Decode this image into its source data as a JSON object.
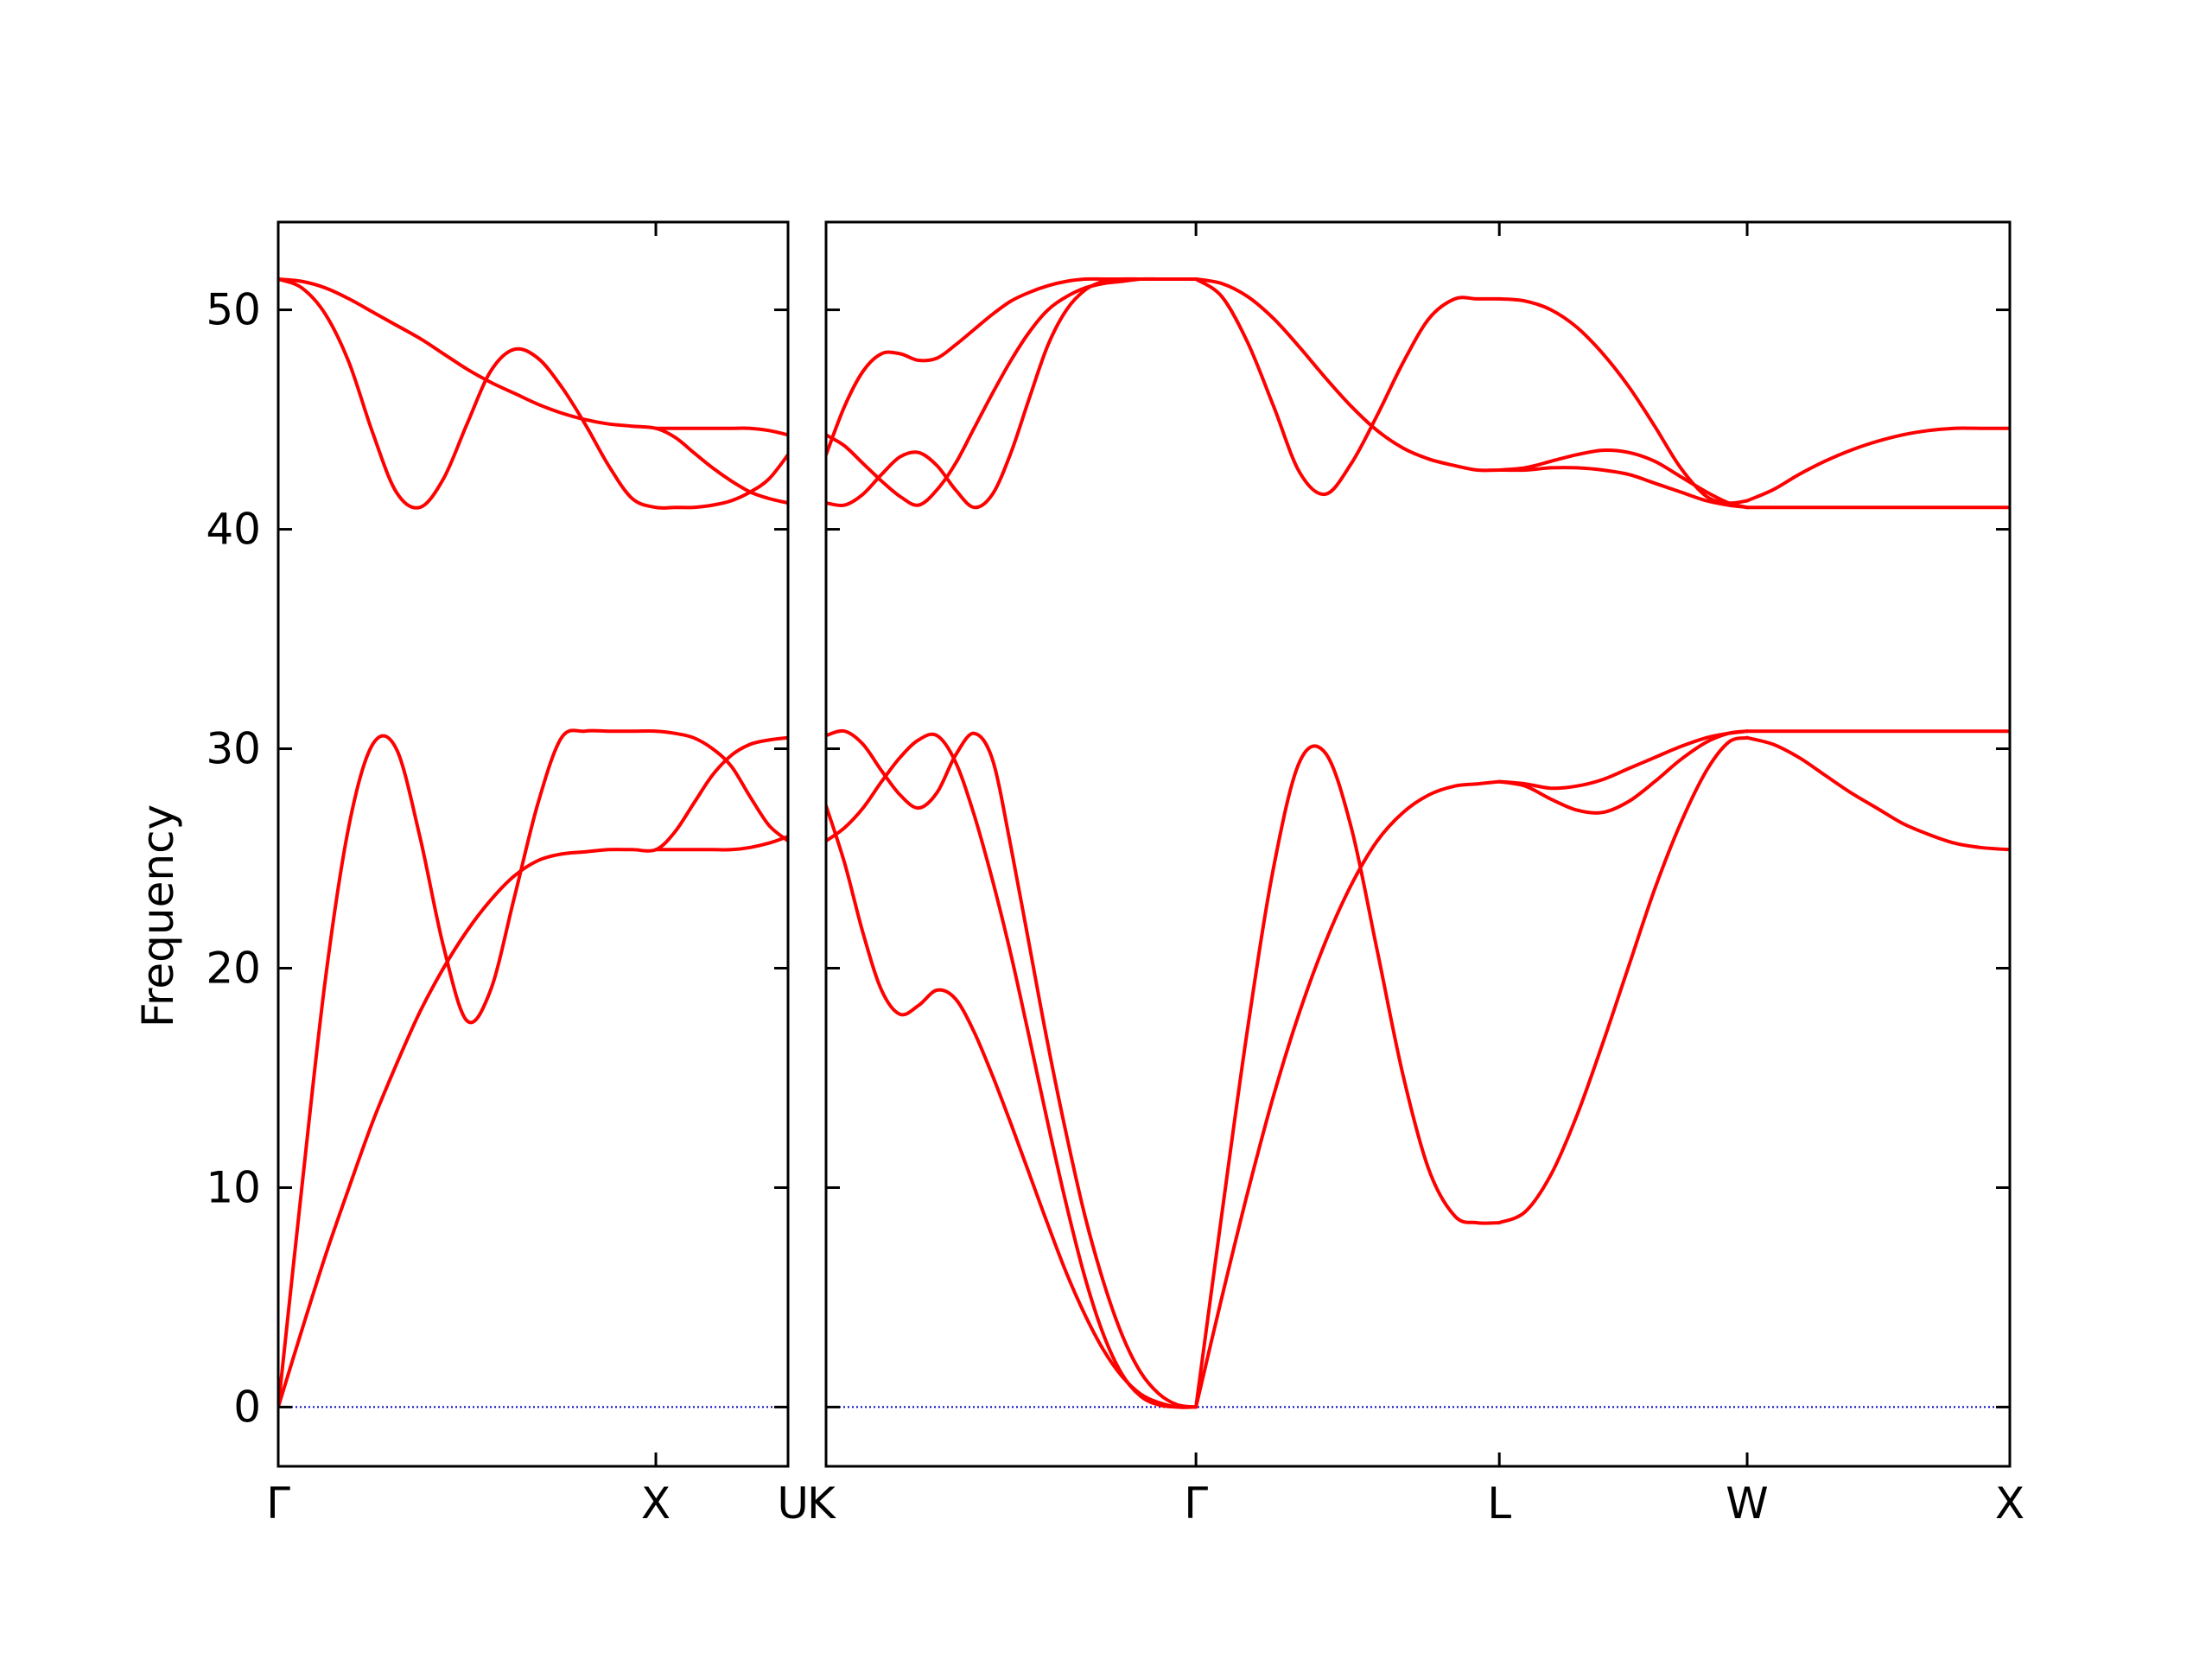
{
  "chart_data": {
    "type": "line",
    "title": "",
    "ylabel": "Frequency",
    "ylim": [
      -2.7,
      54
    ],
    "yticks": [
      0,
      10,
      20,
      30,
      40,
      50
    ],
    "grid": false,
    "legend": "none",
    "colors": {
      "band": "#ff0000",
      "zero_line": "#0000cc",
      "frame": "#000000"
    },
    "panels": [
      {
        "name": "left",
        "xlim": [
          0,
          1.35
        ],
        "xticks": [
          {
            "x": 0,
            "label": "Γ"
          },
          {
            "x": 1.0,
            "label": "X"
          },
          {
            "x": 1.35,
            "label": "U"
          }
        ],
        "series": [
          {
            "x": [
              0,
              0.0625,
              0.125,
              0.1875,
              0.25,
              0.3125,
              0.375,
              0.4375,
              0.5,
              0.5625,
              0.625,
              0.6875,
              0.75,
              0.8125,
              0.875,
              0.9375,
              1.0,
              1.05,
              1.1,
              1.15,
              1.2,
              1.25,
              1.3,
              1.35
            ],
            "y": [
              51.4,
              51.0,
              49.8,
              47.6,
              44.4,
              41.7,
              41.0,
              42.3,
              44.8,
              47.2,
              48.2,
              47.8,
              46.5,
              44.8,
              42.9,
              41.4,
              41.0,
              41.0,
              41.0,
              41.1,
              41.3,
              41.7,
              42.3,
              43.4
            ]
          },
          {
            "x": [
              0,
              0.0625,
              0.125,
              0.1875,
              0.25,
              0.3125,
              0.375,
              0.4375,
              0.5,
              0.5625,
              0.625,
              0.6875,
              0.75,
              0.8125,
              0.875,
              0.9375,
              1.0,
              1.05,
              1.1,
              1.15,
              1.2,
              1.25,
              1.3,
              1.35
            ],
            "y": [
              51.4,
              51.3,
              51.0,
              50.5,
              49.9,
              49.3,
              48.7,
              48.0,
              47.3,
              46.7,
              46.2,
              45.7,
              45.3,
              45.0,
              44.8,
              44.7,
              44.6,
              44.2,
              43.5,
              42.8,
              42.2,
              41.7,
              41.4,
              41.2
            ]
          },
          {
            "x": [
              1.0,
              1.05,
              1.1,
              1.15,
              1.2,
              1.25,
              1.3,
              1.35
            ],
            "y": [
              44.6,
              44.6,
              44.6,
              44.6,
              44.6,
              44.6,
              44.5,
              44.3
            ]
          },
          {
            "x": [
              0,
              0.0625,
              0.125,
              0.1875,
              0.25,
              0.3125,
              0.375,
              0.4375,
              0.5,
              0.5625,
              0.625,
              0.6875,
              0.75,
              0.8125,
              0.875,
              0.9375,
              1.0,
              1.05,
              1.1,
              1.15,
              1.2,
              1.25,
              1.3,
              1.35
            ],
            "y": [
              0,
              10.0,
              19.5,
              26.5,
              30.2,
              30.0,
              26.0,
              21.0,
              17.6,
              19.0,
              23.2,
              27.5,
              30.5,
              30.8,
              30.8,
              30.8,
              30.8,
              30.7,
              30.5,
              30.0,
              29.2,
              27.8,
              26.5,
              25.8
            ]
          },
          {
            "x": [
              0,
              0.0625,
              0.125,
              0.1875,
              0.25,
              0.3125,
              0.375,
              0.4375,
              0.5,
              0.5625,
              0.625,
              0.6875,
              0.75,
              0.8125,
              0.875,
              0.9375,
              1.0,
              1.05,
              1.1,
              1.15,
              1.2,
              1.25,
              1.3,
              1.35
            ],
            "y": [
              0,
              3.5,
              6.9,
              10.0,
              13.0,
              15.6,
              18.0,
              20.0,
              21.7,
              23.1,
              24.2,
              24.9,
              25.2,
              25.3,
              25.4,
              25.4,
              25.4,
              26.2,
              27.5,
              28.8,
              29.7,
              30.2,
              30.4,
              30.5
            ]
          },
          {
            "x": [
              1.0,
              1.05,
              1.1,
              1.15,
              1.2,
              1.25,
              1.3,
              1.35
            ],
            "y": [
              25.4,
              25.4,
              25.4,
              25.4,
              25.4,
              25.5,
              25.7,
              26.0
            ]
          }
        ]
      },
      {
        "name": "right",
        "xlim": [
          0,
          3.2
        ],
        "xticks": [
          {
            "x": 0,
            "label": "K"
          },
          {
            "x": 1.0,
            "label": "Γ"
          },
          {
            "x": 1.82,
            "label": "L"
          },
          {
            "x": 2.49,
            "label": "W"
          },
          {
            "x": 3.2,
            "label": "X"
          }
        ],
        "series": [
          {
            "x": [
              0,
              0.05,
              0.1,
              0.15,
              0.2,
              0.25,
              0.3,
              0.35,
              0.4,
              0.45,
              0.5,
              0.55,
              0.6,
              0.65,
              0.7,
              0.75,
              0.8,
              0.85,
              0.9,
              0.95,
              1.0
            ],
            "y": [
              43.4,
              45.6,
              47.2,
              48.0,
              48.0,
              47.7,
              47.8,
              48.4,
              49.1,
              49.8,
              50.4,
              50.8,
              51.1,
              51.3,
              51.4,
              51.4,
              51.4,
              51.4,
              51.4,
              51.4,
              51.4
            ]
          },
          {
            "x": [
              0,
              0.05,
              0.1,
              0.15,
              0.2,
              0.25,
              0.3,
              0.35,
              0.4,
              0.45,
              0.5,
              0.55,
              0.6,
              0.65,
              0.7,
              0.75,
              0.8,
              0.85,
              0.9,
              0.95,
              1.0
            ],
            "y": [
              44.3,
              43.8,
              43.0,
              42.2,
              41.5,
              41.1,
              41.8,
              43.0,
              44.6,
              46.2,
              47.7,
              49.0,
              50.0,
              50.6,
              51.0,
              51.2,
              51.3,
              51.4,
              51.4,
              51.4,
              51.4
            ]
          },
          {
            "x": [
              0,
              0.05,
              0.1,
              0.15,
              0.2,
              0.25,
              0.3,
              0.35,
              0.4,
              0.45,
              0.5,
              0.55,
              0.6,
              0.65,
              0.7,
              0.75,
              0.8,
              0.85,
              0.9,
              0.95,
              1.0
            ],
            "y": [
              41.2,
              41.1,
              41.6,
              42.5,
              43.3,
              43.5,
              42.9,
              41.8,
              41.0,
              41.6,
              43.5,
              46.0,
              48.4,
              50.0,
              50.9,
              51.3,
              51.4,
              51.4,
              51.4,
              51.4,
              51.4
            ]
          },
          {
            "x": [
              1.0,
              1.07,
              1.14,
              1.21,
              1.28,
              1.35,
              1.42,
              1.49,
              1.56,
              1.63,
              1.7,
              1.76,
              1.82
            ],
            "y": [
              51.4,
              51.2,
              50.6,
              49.6,
              48.3,
              46.9,
              45.6,
              44.5,
              43.7,
              43.2,
              42.9,
              42.7,
              42.7
            ]
          },
          {
            "x": [
              1.0,
              1.07,
              1.14,
              1.21,
              1.28,
              1.35,
              1.42,
              1.49,
              1.56,
              1.63,
              1.7,
              1.76,
              1.82
            ],
            "y": [
              51.4,
              50.6,
              48.5,
              45.6,
              42.6,
              41.6,
              43.0,
              45.2,
              47.6,
              49.6,
              50.5,
              50.5,
              50.5
            ]
          },
          {
            "x": [
              1.82,
              1.89,
              1.96,
              2.03,
              2.1,
              2.17,
              2.24,
              2.31,
              2.38,
              2.44,
              2.49
            ],
            "y": [
              50.5,
              50.4,
              50.0,
              49.2,
              48.0,
              46.5,
              44.7,
              42.8,
              41.5,
              41.2,
              41.3
            ]
          },
          {
            "x": [
              1.82,
              1.89,
              1.96,
              2.03,
              2.1,
              2.17,
              2.24,
              2.31,
              2.38,
              2.44,
              2.49
            ],
            "y": [
              42.7,
              42.8,
              43.1,
              43.4,
              43.6,
              43.5,
              43.1,
              42.4,
              41.7,
              41.2,
              41.0
            ]
          },
          {
            "x": [
              1.82,
              1.89,
              1.96,
              2.03,
              2.1,
              2.17,
              2.24,
              2.31,
              2.38,
              2.44,
              2.49
            ],
            "y": [
              42.7,
              42.7,
              42.8,
              42.8,
              42.7,
              42.5,
              42.1,
              41.7,
              41.3,
              41.1,
              41.0
            ]
          },
          {
            "x": [
              2.49,
              2.56,
              2.63,
              2.7,
              2.77,
              2.84,
              2.91,
              2.98,
              3.05,
              3.12,
              3.2
            ],
            "y": [
              41.3,
              41.8,
              42.5,
              43.1,
              43.6,
              44.0,
              44.3,
              44.5,
              44.6,
              44.6,
              44.6
            ]
          },
          {
            "x": [
              2.49,
              2.56,
              2.63,
              2.7,
              2.77,
              2.84,
              2.91,
              2.98,
              3.05,
              3.12,
              3.2
            ],
            "y": [
              41.0,
              41.0,
              41.0,
              41.0,
              41.0,
              41.0,
              41.0,
              41.0,
              41.0,
              41.0,
              41.0
            ]
          },
          {
            "x": [
              0,
              0.05,
              0.1,
              0.15,
              0.2,
              0.25,
              0.3,
              0.35,
              0.4,
              0.45,
              0.5,
              0.55,
              0.6,
              0.65,
              0.7,
              0.75,
              0.8,
              0.85,
              0.9,
              0.95,
              1.0
            ],
            "y": [
              30.6,
              30.8,
              30.2,
              29.0,
              27.9,
              27.3,
              28.0,
              29.7,
              30.7,
              29.5,
              25.5,
              21.0,
              16.5,
              12.4,
              8.7,
              5.7,
              3.3,
              1.6,
              0.6,
              0.1,
              0
            ]
          },
          {
            "x": [
              0,
              0.05,
              0.1,
              0.15,
              0.2,
              0.25,
              0.3,
              0.35,
              0.4,
              0.45,
              0.5,
              0.55,
              0.6,
              0.65,
              0.7,
              0.75,
              0.8,
              0.85,
              0.9,
              0.95,
              1.0
            ],
            "y": [
              25.8,
              26.4,
              27.3,
              28.5,
              29.6,
              30.4,
              30.6,
              29.4,
              27.0,
              24.0,
              20.6,
              16.8,
              12.9,
              9.2,
              5.9,
              3.3,
              1.5,
              0.5,
              0.1,
              0,
              0
            ]
          },
          {
            "x": [
              0,
              0.05,
              0.1,
              0.15,
              0.2,
              0.25,
              0.3,
              0.35,
              0.4,
              0.45,
              0.5,
              0.55,
              0.6,
              0.65,
              0.7,
              0.75,
              0.8,
              0.85,
              0.9,
              0.95,
              1.0
            ],
            "y": [
              27.4,
              24.8,
              21.6,
              19.0,
              17.9,
              18.3,
              19.0,
              18.6,
              17.1,
              15.1,
              12.9,
              10.6,
              8.3,
              6.1,
              4.2,
              2.6,
              1.4,
              0.6,
              0.2,
              0,
              0
            ]
          },
          {
            "x": [
              1.0,
              1.07,
              1.14,
              1.21,
              1.28,
              1.35,
              1.42,
              1.49,
              1.56,
              1.63,
              1.7,
              1.76,
              1.82
            ],
            "y": [
              0,
              8.8,
              17.3,
              24.6,
              29.4,
              29.8,
              26.4,
              20.8,
              15.1,
              10.8,
              8.7,
              8.4,
              8.4
            ]
          },
          {
            "x": [
              1.0,
              1.07,
              1.14,
              1.21,
              1.28,
              1.35,
              1.42,
              1.49,
              1.56,
              1.63,
              1.7,
              1.76,
              1.82
            ],
            "y": [
              0,
              5.0,
              9.8,
              14.2,
              18.0,
              21.2,
              23.8,
              25.8,
              27.1,
              27.9,
              28.3,
              28.4,
              28.5
            ]
          },
          {
            "x": [
              1.82,
              1.89,
              1.96,
              2.03,
              2.1,
              2.17,
              2.24,
              2.31,
              2.38,
              2.44,
              2.49
            ],
            "y": [
              8.4,
              8.9,
              10.6,
              13.3,
              16.6,
              20.1,
              23.6,
              26.6,
              29.0,
              30.3,
              30.5
            ]
          },
          {
            "x": [
              1.82,
              1.89,
              1.96,
              2.03,
              2.1,
              2.17,
              2.24,
              2.31,
              2.38,
              2.44,
              2.49
            ],
            "y": [
              28.5,
              28.4,
              28.2,
              28.3,
              28.6,
              29.1,
              29.6,
              30.1,
              30.5,
              30.7,
              30.8
            ]
          },
          {
            "x": [
              1.82,
              1.89,
              1.96,
              2.03,
              2.1,
              2.17,
              2.24,
              2.31,
              2.38,
              2.44,
              2.49
            ],
            "y": [
              28.5,
              28.3,
              27.7,
              27.2,
              27.1,
              27.6,
              28.5,
              29.5,
              30.3,
              30.7,
              30.8
            ]
          },
          {
            "x": [
              2.49,
              2.56,
              2.63,
              2.7,
              2.77,
              2.84,
              2.91,
              2.98,
              3.05,
              3.12,
              3.2
            ],
            "y": [
              30.5,
              30.2,
              29.6,
              28.8,
              28.0,
              27.3,
              26.6,
              26.1,
              25.7,
              25.5,
              25.4
            ]
          },
          {
            "x": [
              2.49,
              2.56,
              2.63,
              2.7,
              2.77,
              2.84,
              2.91,
              2.98,
              3.05,
              3.12,
              3.2
            ],
            "y": [
              30.8,
              30.8,
              30.8,
              30.8,
              30.8,
              30.8,
              30.8,
              30.8,
              30.8,
              30.8,
              30.8
            ]
          }
        ]
      }
    ]
  }
}
